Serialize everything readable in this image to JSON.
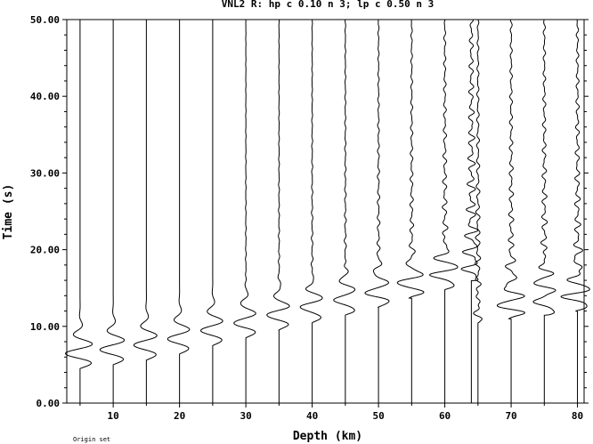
{
  "chart_data": {
    "type": "line",
    "title": "VNL2 R: hp c 0.10 n 3; lp c 0.50 n 3",
    "xlabel": "Depth (km)",
    "ylabel": "Time (s)",
    "xlim": [
      3,
      81
    ],
    "ylim": [
      0,
      50
    ],
    "x_ticks": [
      10,
      20,
      30,
      40,
      50,
      60,
      70,
      80
    ],
    "x_tick_labels": [
      "10",
      "20",
      "30",
      "40",
      "50",
      "60",
      "70",
      "80"
    ],
    "y_ticks": [
      0,
      10,
      20,
      30,
      40,
      50
    ],
    "y_tick_labels": [
      "0.00",
      "10.00",
      "20.00",
      "30.00",
      "40.00",
      "50.00"
    ],
    "traces": [
      {
        "depth": 5,
        "arrival": 4.5,
        "amp": 2.2,
        "period": 2.6,
        "cycles": 3,
        "coda": 0.0
      },
      {
        "depth": 10,
        "arrival": 5.0,
        "amp": 2.0,
        "period": 2.6,
        "cycles": 3,
        "coda": 0.0
      },
      {
        "depth": 15,
        "arrival": 5.6,
        "amp": 1.9,
        "period": 2.6,
        "cycles": 3,
        "coda": 0.0
      },
      {
        "depth": 20,
        "arrival": 6.4,
        "amp": 1.8,
        "period": 2.6,
        "cycles": 3,
        "coda": 0.0
      },
      {
        "depth": 25,
        "arrival": 7.5,
        "amp": 1.8,
        "period": 2.6,
        "cycles": 3,
        "coda": 0.0
      },
      {
        "depth": 30,
        "arrival": 8.5,
        "amp": 1.8,
        "period": 2.6,
        "cycles": 3,
        "coda": 0.1
      },
      {
        "depth": 35,
        "arrival": 9.5,
        "amp": 1.8,
        "period": 2.6,
        "cycles": 3,
        "coda": 0.15
      },
      {
        "depth": 40,
        "arrival": 10.5,
        "amp": 1.8,
        "period": 2.6,
        "cycles": 3,
        "coda": 0.2
      },
      {
        "depth": 45,
        "arrival": 11.5,
        "amp": 1.8,
        "period": 2.6,
        "cycles": 3,
        "coda": 0.25
      },
      {
        "depth": 50,
        "arrival": 12.5,
        "amp": 1.9,
        "period": 2.6,
        "cycles": 3,
        "coda": 0.35
      },
      {
        "depth": 55,
        "arrival": 13.7,
        "amp": 2.0,
        "period": 2.6,
        "cycles": 3,
        "coda": 0.45
      },
      {
        "depth": 60,
        "arrival": 14.8,
        "amp": 2.0,
        "period": 2.4,
        "cycles": 4,
        "coda": 0.6
      },
      {
        "depth": 64,
        "arrival": 16.0,
        "amp": 1.7,
        "period": 2.0,
        "cycles": 5,
        "coda": 1.1
      },
      {
        "depth": 65,
        "arrival": 10.5,
        "amp": 0.6,
        "period": 2.0,
        "cycles": 4,
        "coda": 0.6
      },
      {
        "depth": 70,
        "arrival": 11.0,
        "amp": 1.8,
        "period": 2.4,
        "cycles": 5,
        "coda": 0.7
      },
      {
        "depth": 75,
        "arrival": 11.5,
        "amp": 1.8,
        "period": 2.4,
        "cycles": 5,
        "coda": 0.75
      },
      {
        "depth": 80,
        "arrival": 12.0,
        "amp": 1.8,
        "period": 2.4,
        "cycles": 5,
        "coda": 0.8
      }
    ]
  },
  "footer_note": "Origin set"
}
